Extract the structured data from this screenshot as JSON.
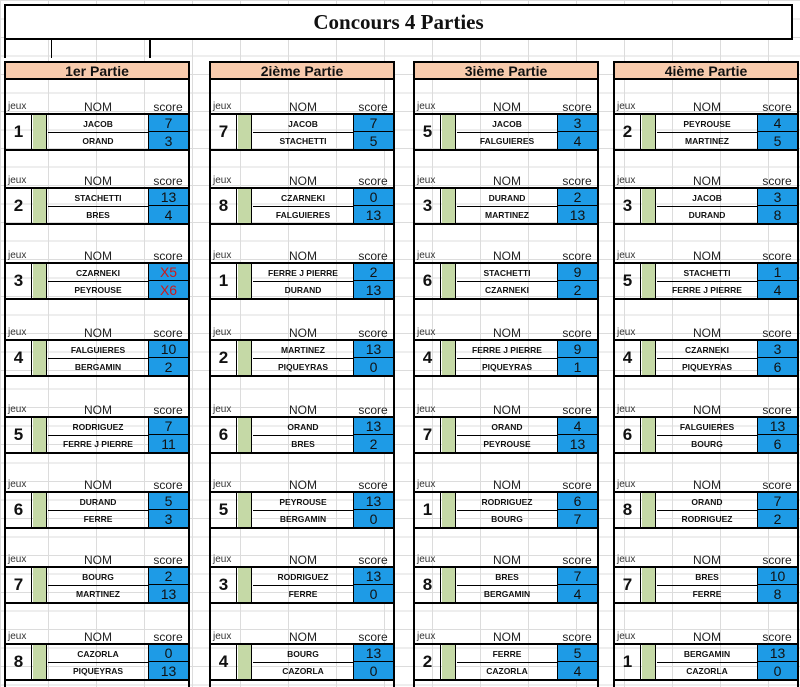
{
  "title": "Concours 4 Parties",
  "headers": {
    "jeux": "jeux",
    "nom": "NOM",
    "score": "score"
  },
  "parties": [
    {
      "label": "1er Partie",
      "matches": [
        {
          "num": "1",
          "p1": "JACOB",
          "s1": "7",
          "p2": "ORAND",
          "s2": "3"
        },
        {
          "num": "2",
          "p1": "STACHETTI",
          "s1": "13",
          "p2": "BRES",
          "s2": "4"
        },
        {
          "num": "3",
          "p1": "CZARNEKI",
          "s1": "X5",
          "p2": "PEYROUSE",
          "s2": "X6"
        },
        {
          "num": "4",
          "p1": "FALGUIERES",
          "s1": "10",
          "p2": "BERGAMIN",
          "s2": "2"
        },
        {
          "num": "5",
          "p1": "RODRIGUEZ",
          "s1": "7",
          "p2": "FERRE J PIERRE",
          "s2": "11"
        },
        {
          "num": "6",
          "p1": "DURAND",
          "s1": "5",
          "p2": "FERRE",
          "s2": "3"
        },
        {
          "num": "7",
          "p1": "BOURG",
          "s1": "2",
          "p2": "MARTINEZ",
          "s2": "13"
        },
        {
          "num": "8",
          "p1": "CAZORLA",
          "s1": "0",
          "p2": "PIQUEYRAS",
          "s2": "13"
        }
      ]
    },
    {
      "label": "2ième Partie",
      "matches": [
        {
          "num": "7",
          "p1": "JACOB",
          "s1": "7",
          "p2": "STACHETTI",
          "s2": "5"
        },
        {
          "num": "8",
          "p1": "CZARNEKI",
          "s1": "0",
          "p2": "FALGUIERES",
          "s2": "13"
        },
        {
          "num": "1",
          "p1": "FERRE J PIERRE",
          "s1": "2",
          "p2": "DURAND",
          "s2": "13"
        },
        {
          "num": "2",
          "p1": "MARTINEZ",
          "s1": "13",
          "p2": "PIQUEYRAS",
          "s2": "0"
        },
        {
          "num": "6",
          "p1": "ORAND",
          "s1": "13",
          "p2": "BRES",
          "s2": "2"
        },
        {
          "num": "5",
          "p1": "PEYROUSE",
          "s1": "13",
          "p2": "BERGAMIN",
          "s2": "0"
        },
        {
          "num": "3",
          "p1": "RODRIGUEZ",
          "s1": "13",
          "p2": "FERRE",
          "s2": "0"
        },
        {
          "num": "4",
          "p1": "BOURG",
          "s1": "13",
          "p2": "CAZORLA",
          "s2": "0"
        }
      ]
    },
    {
      "label": "3ième Partie",
      "matches": [
        {
          "num": "5",
          "p1": "JACOB",
          "s1": "3",
          "p2": "FALGUIERES",
          "s2": "4"
        },
        {
          "num": "3",
          "p1": "DURAND",
          "s1": "2",
          "p2": "MARTINEZ",
          "s2": "13"
        },
        {
          "num": "6",
          "p1": "STACHETTI",
          "s1": "9",
          "p2": "CZARNEKI",
          "s2": "2"
        },
        {
          "num": "4",
          "p1": "FERRE J PIERRE",
          "s1": "9",
          "p2": "PIQUEYRAS",
          "s2": "1"
        },
        {
          "num": "7",
          "p1": "ORAND",
          "s1": "4",
          "p2": "PEYROUSE",
          "s2": "13"
        },
        {
          "num": "1",
          "p1": "RODRIGUEZ",
          "s1": "6",
          "p2": "BOURG",
          "s2": "7"
        },
        {
          "num": "8",
          "p1": "BRES",
          "s1": "7",
          "p2": "BERGAMIN",
          "s2": "4"
        },
        {
          "num": "2",
          "p1": "FERRE",
          "s1": "5",
          "p2": "CAZORLA",
          "s2": "4"
        }
      ]
    },
    {
      "label": "4ième Partie",
      "matches": [
        {
          "num": "2",
          "p1": "PEYROUSE",
          "s1": "4",
          "p2": "MARTINEZ",
          "s2": "5"
        },
        {
          "num": "3",
          "p1": "JACOB",
          "s1": "3",
          "p2": "DURAND",
          "s2": "8"
        },
        {
          "num": "5",
          "p1": "STACHETTI",
          "s1": "1",
          "p2": "FERRE J PIERRE",
          "s2": "4"
        },
        {
          "num": "4",
          "p1": "CZARNEKI",
          "s1": "3",
          "p2": "PIQUEYRAS",
          "s2": "6"
        },
        {
          "num": "6",
          "p1": "FALGUIERES",
          "s1": "13",
          "p2": "BOURG",
          "s2": "6"
        },
        {
          "num": "8",
          "p1": "ORAND",
          "s1": "7",
          "p2": "RODRIGUEZ",
          "s2": "2"
        },
        {
          "num": "7",
          "p1": "BRES",
          "s1": "10",
          "p2": "FERRE",
          "s2": "8"
        },
        {
          "num": "1",
          "p1": "BERGAMIN",
          "s1": "13",
          "p2": "CAZORLA",
          "s2": "0"
        }
      ]
    }
  ]
}
